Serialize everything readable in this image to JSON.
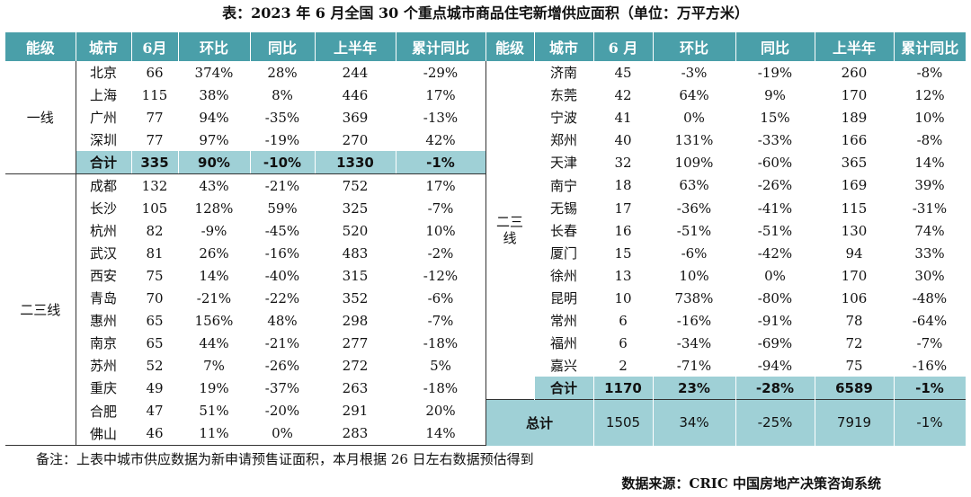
{
  "title": "表：2023 年 6 月全国 30 个重点城市商品住宅新增供应面积（单位：万平方米）",
  "headers": [
    "能级",
    "城市",
    "6月",
    "环比",
    "同比",
    "上半年",
    "累计同比",
    "能级",
    "城市",
    "6 月",
    "环比",
    "同比",
    "上半年",
    "累计同比"
  ],
  "left_tiers": {
    "tier1": "一线",
    "tier23": "二三线"
  },
  "right_tier": "二三\n线",
  "left_rows": [
    [
      "北京",
      "66",
      "374%",
      "28%",
      "244",
      "-29%"
    ],
    [
      "上海",
      "115",
      "38%",
      "8%",
      "446",
      "17%"
    ],
    [
      "广州",
      "77",
      "94%",
      "-35%",
      "369",
      "-13%"
    ],
    [
      "深圳",
      "77",
      "97%",
      "-19%",
      "270",
      "42%"
    ],
    [
      "合计",
      "335",
      "90%",
      "-10%",
      "1330",
      "-1%"
    ],
    [
      "成都",
      "132",
      "43%",
      "-21%",
      "752",
      "17%"
    ],
    [
      "长沙",
      "105",
      "128%",
      "59%",
      "325",
      "-7%"
    ],
    [
      "杭州",
      "82",
      "-9%",
      "-45%",
      "520",
      "10%"
    ],
    [
      "武汉",
      "81",
      "26%",
      "-16%",
      "483",
      "-2%"
    ],
    [
      "西安",
      "75",
      "14%",
      "-40%",
      "315",
      "-12%"
    ],
    [
      "青岛",
      "70",
      "-21%",
      "-22%",
      "352",
      "-6%"
    ],
    [
      "惠州",
      "65",
      "156%",
      "48%",
      "298",
      "-7%"
    ],
    [
      "南京",
      "65",
      "44%",
      "-21%",
      "277",
      "-18%"
    ],
    [
      "苏州",
      "52",
      "7%",
      "-26%",
      "272",
      "5%"
    ],
    [
      "重庆",
      "49",
      "19%",
      "-37%",
      "263",
      "-18%"
    ],
    [
      "合肥",
      "47",
      "51%",
      "-20%",
      "291",
      "20%"
    ],
    [
      "佛山",
      "46",
      "11%",
      "0%",
      "283",
      "14%"
    ]
  ],
  "right_rows": [
    [
      "济南",
      "45",
      "-3%",
      "-19%",
      "260",
      "-8%"
    ],
    [
      "东莞",
      "42",
      "64%",
      "9%",
      "170",
      "12%"
    ],
    [
      "宁波",
      "41",
      "0%",
      "15%",
      "189",
      "10%"
    ],
    [
      "郑州",
      "40",
      "131%",
      "-33%",
      "166",
      "-8%"
    ],
    [
      "天津",
      "32",
      "109%",
      "-60%",
      "365",
      "14%"
    ],
    [
      "南宁",
      "18",
      "63%",
      "-26%",
      "169",
      "39%"
    ],
    [
      "无锡",
      "17",
      "-36%",
      "-41%",
      "115",
      "-31%"
    ],
    [
      "长春",
      "16",
      "-51%",
      "-51%",
      "130",
      "74%"
    ],
    [
      "厦门",
      "15",
      "-6%",
      "-42%",
      "94",
      "33%"
    ],
    [
      "徐州",
      "13",
      "10%",
      "0%",
      "170",
      "30%"
    ],
    [
      "昆明",
      "10",
      "738%",
      "-80%",
      "106",
      "-48%"
    ],
    [
      "常州",
      "6",
      "-16%",
      "-91%",
      "78",
      "-64%"
    ],
    [
      "福州",
      "6",
      "-34%",
      "-69%",
      "72",
      "-7%"
    ],
    [
      "嘉兴",
      "2",
      "-71%",
      "-94%",
      "75",
      "-16%"
    ],
    [
      "合计",
      "1170",
      "23%",
      "-28%",
      "6589",
      "-1%"
    ]
  ],
  "grand_total": [
    "总计",
    "1505",
    "34%",
    "-25%",
    "7919",
    "-1%"
  ],
  "note": "备注：上表中城市供应数据为新申请预售证面积，本月根据 26 日左右数据预估得到",
  "source": "数据来源：CRIC 中国房地产决策咨询系统"
}
